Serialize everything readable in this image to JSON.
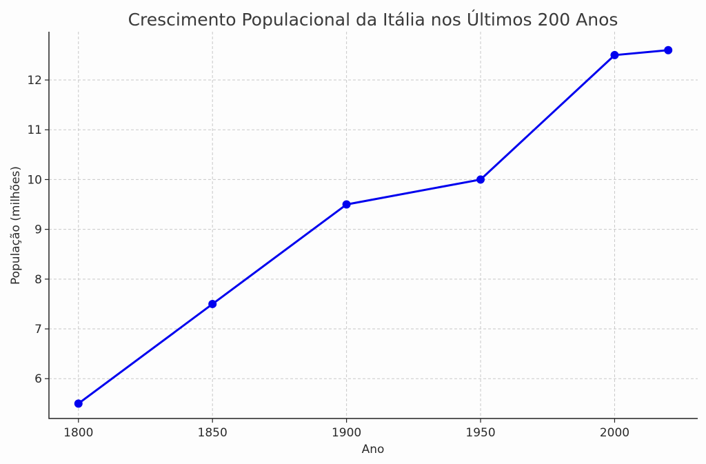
{
  "chart_data": {
    "type": "line",
    "title": "Crescimento Populacional da Itália nos Últimos 200 Anos",
    "xlabel": "Ano",
    "ylabel": "População (milhões)",
    "xlim": [
      1789,
      2031
    ],
    "ylim": [
      5.2,
      12.97
    ],
    "xticks": [
      1800,
      1850,
      1900,
      1950,
      2000
    ],
    "yticks": [
      6,
      7,
      8,
      9,
      10,
      11,
      12
    ],
    "grid": true,
    "series": [
      {
        "color": "#0000ee",
        "x": [
          1800,
          1850,
          1900,
          1950,
          2000,
          2020
        ],
        "y": [
          5.5,
          7.5,
          9.5,
          10.0,
          12.5,
          12.6
        ]
      }
    ]
  }
}
